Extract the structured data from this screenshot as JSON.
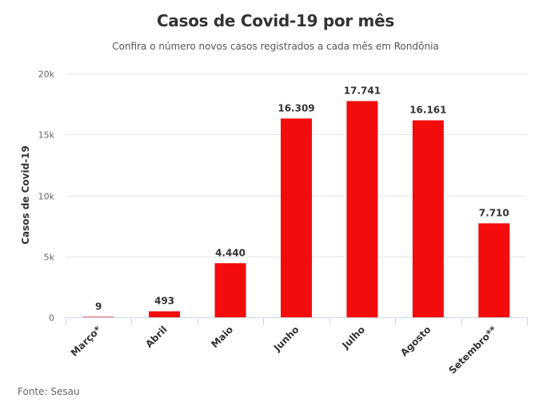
{
  "title": "Casos de Covid-19 por mês",
  "subtitle": "Confira o número novos casos registrados a cada mês em Rondônia",
  "source": "Fonte: Sesau",
  "colors": {
    "bar": "#f20c0c",
    "grid": "#e6e6e6",
    "axis": "#ccd6eb"
  },
  "chart_data": {
    "type": "bar",
    "title": "Casos de Covid-19 por mês",
    "subtitle": "Confira o número novos casos registrados a cada mês em Rondônia",
    "xlabel": "",
    "ylabel": "Casos de Covid-19",
    "categories": [
      "Março*",
      "Abril",
      "Maio",
      "Junho",
      "Julho",
      "Agosto",
      "Setembro**"
    ],
    "values": [
      9,
      493,
      4440,
      16309,
      17741,
      16161,
      7710
    ],
    "data_labels": [
      "9",
      "493",
      "4.440",
      "16.309",
      "17.741",
      "16.161",
      "7.710"
    ],
    "ylim": [
      0,
      20000
    ],
    "yticks": [
      0,
      5000,
      10000,
      15000,
      20000
    ],
    "ytick_labels": [
      "0",
      "5k",
      "10k",
      "15k",
      "20k"
    ],
    "grid": true,
    "legend": "none"
  }
}
